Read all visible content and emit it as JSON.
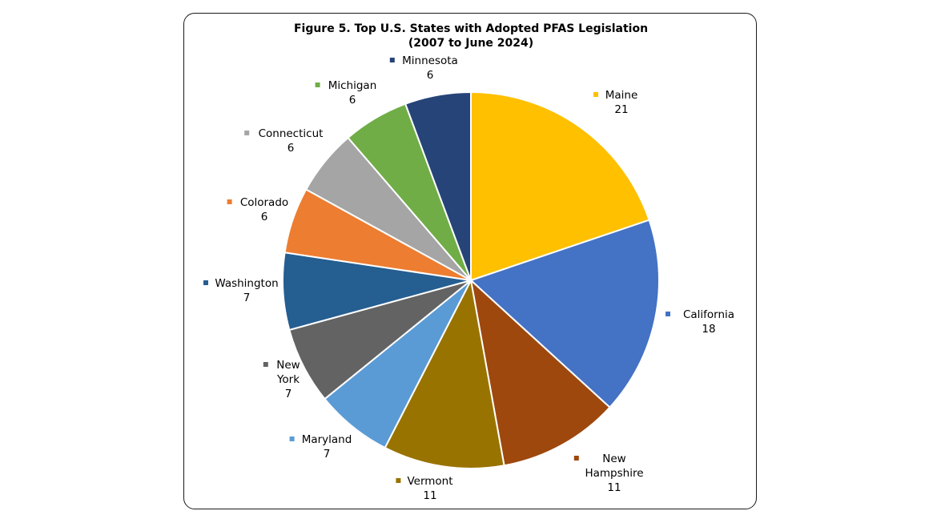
{
  "chart_data": {
    "type": "pie",
    "title": "Figure 5. Top U.S. States with Adopted PFAS Legislation",
    "subtitle": "(2007 to June 2024)",
    "slices": [
      {
        "label": "Maine",
        "value": 21,
        "color": "#FFC000"
      },
      {
        "label": "California",
        "value": 18,
        "color": "#4472C4"
      },
      {
        "label": "New Hampshire",
        "value": 11,
        "color": "#9E480E"
      },
      {
        "label": "Vermont",
        "value": 11,
        "color": "#997300"
      },
      {
        "label": "Maryland",
        "value": 7,
        "color": "#5B9BD5"
      },
      {
        "label": "New York",
        "value": 7,
        "color": "#636363"
      },
      {
        "label": "Washington",
        "value": 7,
        "color": "#255E91"
      },
      {
        "label": "Colorado",
        "value": 6,
        "color": "#ED7D31"
      },
      {
        "label": "Connecticut",
        "value": 6,
        "color": "#A5A5A5"
      },
      {
        "label": "Michigan",
        "value": 6,
        "color": "#70AD47"
      },
      {
        "label": "Minnesota",
        "value": 6,
        "color": "#264478"
      }
    ]
  }
}
